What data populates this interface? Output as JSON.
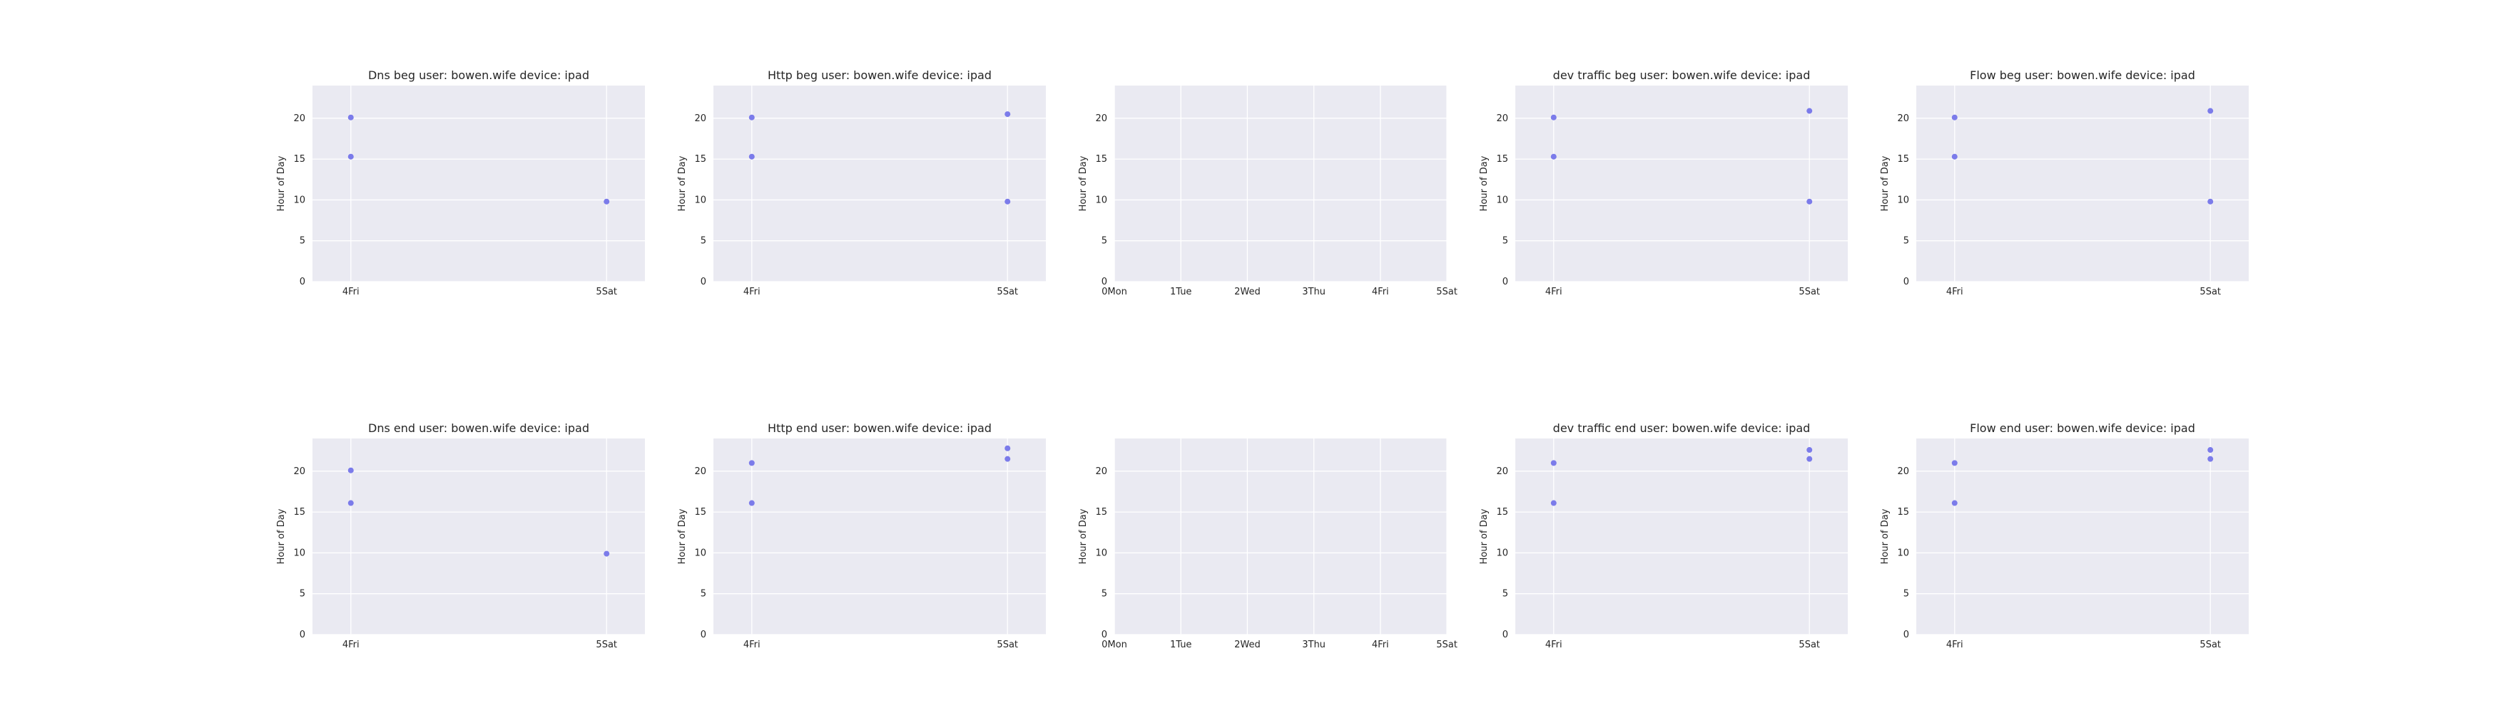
{
  "chart_data": [
    {
      "type": "scatter",
      "title": "Dns beg user: bowen.wife device: ipad",
      "ylabel": "Hour of Day",
      "xlim": [
        3.85,
        5.15
      ],
      "ylim": [
        0,
        24
      ],
      "yticks": [
        0,
        5,
        10,
        15,
        20
      ],
      "xticks": [
        {
          "value": 4,
          "label": "4Fri"
        },
        {
          "value": 5,
          "label": "5Sat"
        }
      ],
      "grid": true,
      "series": [
        {
          "x": [
            4,
            4,
            5
          ],
          "y": [
            20.1,
            15.3,
            9.8
          ]
        }
      ]
    },
    {
      "type": "scatter",
      "title": "Http beg user: bowen.wife device: ipad",
      "ylabel": "Hour of Day",
      "xlim": [
        3.85,
        5.15
      ],
      "ylim": [
        0,
        24
      ],
      "yticks": [
        0,
        5,
        10,
        15,
        20
      ],
      "xticks": [
        {
          "value": 4,
          "label": "4Fri"
        },
        {
          "value": 5,
          "label": "5Sat"
        }
      ],
      "grid": true,
      "series": [
        {
          "x": [
            4,
            4,
            5,
            5
          ],
          "y": [
            20.1,
            15.3,
            20.5,
            9.8
          ]
        }
      ]
    },
    {
      "type": "scatter",
      "title": "",
      "ylabel": "Hour of Day",
      "xlim": [
        0,
        5
      ],
      "ylim": [
        0,
        24
      ],
      "yticks": [
        0,
        5,
        10,
        15,
        20
      ],
      "xticks": [
        {
          "value": 0,
          "label": "0Mon"
        },
        {
          "value": 1,
          "label": "1Tue"
        },
        {
          "value": 2,
          "label": "2Wed"
        },
        {
          "value": 3,
          "label": "3Thu"
        },
        {
          "value": 4,
          "label": "4Fri"
        },
        {
          "value": 5,
          "label": "5Sat"
        }
      ],
      "grid": true,
      "series": []
    },
    {
      "type": "scatter",
      "title": "dev traffic beg user: bowen.wife device: ipad",
      "ylabel": "Hour of Day",
      "xlim": [
        3.85,
        5.15
      ],
      "ylim": [
        0,
        24
      ],
      "yticks": [
        0,
        5,
        10,
        15,
        20
      ],
      "xticks": [
        {
          "value": 4,
          "label": "4Fri"
        },
        {
          "value": 5,
          "label": "5Sat"
        }
      ],
      "grid": true,
      "series": [
        {
          "x": [
            4,
            4,
            5,
            5
          ],
          "y": [
            20.1,
            15.3,
            20.9,
            9.8
          ]
        }
      ]
    },
    {
      "type": "scatter",
      "title": "Flow beg user: bowen.wife device: ipad",
      "ylabel": "Hour of Day",
      "xlim": [
        3.85,
        5.15
      ],
      "ylim": [
        0,
        24
      ],
      "yticks": [
        0,
        5,
        10,
        15,
        20
      ],
      "xticks": [
        {
          "value": 4,
          "label": "4Fri"
        },
        {
          "value": 5,
          "label": "5Sat"
        }
      ],
      "grid": true,
      "series": [
        {
          "x": [
            4,
            4,
            5,
            5
          ],
          "y": [
            20.1,
            15.3,
            20.9,
            9.8
          ]
        }
      ]
    },
    {
      "type": "scatter",
      "title": "Dns end user: bowen.wife device: ipad",
      "ylabel": "Hour of Day",
      "xlim": [
        3.85,
        5.15
      ],
      "ylim": [
        0,
        24
      ],
      "yticks": [
        0,
        5,
        10,
        15,
        20
      ],
      "xticks": [
        {
          "value": 4,
          "label": "4Fri"
        },
        {
          "value": 5,
          "label": "5Sat"
        }
      ],
      "grid": true,
      "series": [
        {
          "x": [
            4,
            4,
            5
          ],
          "y": [
            20.1,
            16.1,
            9.9
          ]
        }
      ]
    },
    {
      "type": "scatter",
      "title": "Http end user: bowen.wife device: ipad",
      "ylabel": "Hour of Day",
      "xlim": [
        3.85,
        5.15
      ],
      "ylim": [
        0,
        24
      ],
      "yticks": [
        0,
        5,
        10,
        15,
        20
      ],
      "xticks": [
        {
          "value": 4,
          "label": "4Fri"
        },
        {
          "value": 5,
          "label": "5Sat"
        }
      ],
      "grid": true,
      "series": [
        {
          "x": [
            4,
            4,
            5,
            5
          ],
          "y": [
            21.0,
            16.1,
            22.8,
            21.5
          ]
        }
      ]
    },
    {
      "type": "scatter",
      "title": "",
      "ylabel": "Hour of Day",
      "xlim": [
        0,
        5
      ],
      "ylim": [
        0,
        24
      ],
      "yticks": [
        0,
        5,
        10,
        15,
        20
      ],
      "xticks": [
        {
          "value": 0,
          "label": "0Mon"
        },
        {
          "value": 1,
          "label": "1Tue"
        },
        {
          "value": 2,
          "label": "2Wed"
        },
        {
          "value": 3,
          "label": "3Thu"
        },
        {
          "value": 4,
          "label": "4Fri"
        },
        {
          "value": 5,
          "label": "5Sat"
        }
      ],
      "grid": true,
      "series": []
    },
    {
      "type": "scatter",
      "title": "dev traffic end user: bowen.wife device: ipad",
      "ylabel": "Hour of Day",
      "xlim": [
        3.85,
        5.15
      ],
      "ylim": [
        0,
        24
      ],
      "yticks": [
        0,
        5,
        10,
        15,
        20
      ],
      "xticks": [
        {
          "value": 4,
          "label": "4Fri"
        },
        {
          "value": 5,
          "label": "5Sat"
        }
      ],
      "grid": true,
      "series": [
        {
          "x": [
            4,
            4,
            5,
            5
          ],
          "y": [
            21.0,
            16.1,
            22.6,
            21.5
          ]
        }
      ]
    },
    {
      "type": "scatter",
      "title": "Flow end user: bowen.wife device: ipad",
      "ylabel": "Hour of Day",
      "xlim": [
        3.85,
        5.15
      ],
      "ylim": [
        0,
        24
      ],
      "yticks": [
        0,
        5,
        10,
        15,
        20
      ],
      "xticks": [
        {
          "value": 4,
          "label": "4Fri"
        },
        {
          "value": 5,
          "label": "5Sat"
        }
      ],
      "grid": true,
      "series": [
        {
          "x": [
            4,
            4,
            5,
            5
          ],
          "y": [
            21.0,
            16.1,
            22.6,
            21.5
          ]
        }
      ]
    }
  ]
}
